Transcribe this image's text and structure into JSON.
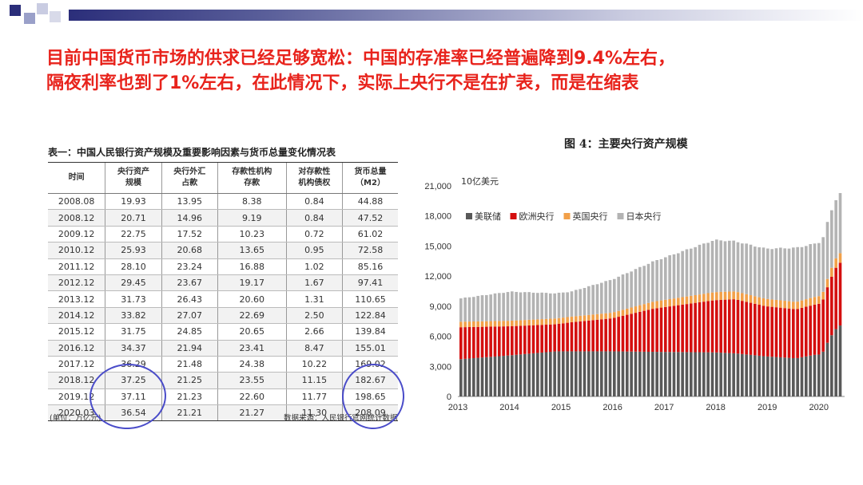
{
  "slide": {
    "headline_line1": "目前中国货币市场的供求已经足够宽松：中国的存准率已经普遍降到9.4%左右，",
    "headline_line2": "隔夜利率也到了1%左右，在此情况下，实际上央行不是在扩表，而是在缩表",
    "accent_colors": {
      "headline": "#e8231c",
      "bar_dark": "#2b2e7a",
      "annotation_circle": "#4a4cc9"
    }
  },
  "table": {
    "title": "表一：中国人民银行资产规模及重要影响因素与货币总量变化情况表",
    "headers": [
      "时间",
      "央行资产规模",
      "央行外汇占款",
      "存款性机构存款",
      "对存款性机构债权",
      "货币总量（M2）"
    ],
    "header_lines": [
      [
        "时间",
        ""
      ],
      [
        "央行资产",
        "规模"
      ],
      [
        "央行外汇",
        "占款"
      ],
      [
        "存款性机构",
        "存款"
      ],
      [
        "对存款性",
        "机构债权"
      ],
      [
        "货币总量",
        "（M2）"
      ]
    ],
    "rows": [
      [
        "2008.08",
        "19.93",
        "13.95",
        "8.38",
        "0.84",
        "44.88"
      ],
      [
        "2008.12",
        "20.71",
        "14.96",
        "9.19",
        "0.84",
        "47.52"
      ],
      [
        "2009.12",
        "22.75",
        "17.52",
        "10.23",
        "0.72",
        "61.02"
      ],
      [
        "2010.12",
        "25.93",
        "20.68",
        "13.65",
        "0.95",
        "72.58"
      ],
      [
        "2011.12",
        "28.10",
        "23.24",
        "16.88",
        "1.02",
        "85.16"
      ],
      [
        "2012.12",
        "29.45",
        "23.67",
        "19.17",
        "1.67",
        "97.41"
      ],
      [
        "2013.12",
        "31.73",
        "26.43",
        "20.60",
        "1.31",
        "110.65"
      ],
      [
        "2014.12",
        "33.82",
        "27.07",
        "22.69",
        "2.50",
        "122.84"
      ],
      [
        "2015.12",
        "31.75",
        "24.85",
        "20.65",
        "2.66",
        "139.84"
      ],
      [
        "2016.12",
        "34.37",
        "21.94",
        "23.41",
        "8.47",
        "155.01"
      ],
      [
        "2017.12",
        "36.29",
        "21.48",
        "24.38",
        "10.22",
        "169.02"
      ],
      [
        "2018.12",
        "37.25",
        "21.25",
        "23.55",
        "11.15",
        "182.67"
      ],
      [
        "2019.12",
        "37.11",
        "21.23",
        "22.60",
        "11.77",
        "198.65"
      ],
      [
        "2020.03",
        "36.54",
        "21.21",
        "21.27",
        "11.30",
        "208.09"
      ]
    ],
    "unit_note": "(单位：万亿元)",
    "source_note": "数据来源：人民银行官网统计数据"
  },
  "chart_data": {
    "type": "bar",
    "stacked": true,
    "title": "图 4：主要央行资产规模",
    "ylabel": "10亿美元",
    "ylim": [
      0,
      21000
    ],
    "yticks": [
      0,
      3000,
      6000,
      9000,
      12000,
      15000,
      18000,
      21000
    ],
    "ytick_labels": [
      "0",
      "3,000",
      "6,000",
      "9,000",
      "12,000",
      "15,000",
      "18,000",
      "21,000"
    ],
    "xtick_labels": [
      "2013",
      "2014",
      "2015",
      "2016",
      "2017",
      "2018",
      "2019",
      "2020"
    ],
    "legend_placement": "top-left",
    "series": [
      {
        "name": "美联储",
        "color": "#595959"
      },
      {
        "name": "欧洲央行",
        "color": "#d40f0f"
      },
      {
        "name": "英国央行",
        "color": "#f2a049"
      },
      {
        "name": "日本央行",
        "color": "#b3b3b3"
      }
    ],
    "anchors": [
      {
        "t": 2013.0,
        "fed": 3700,
        "ecb": 3200,
        "boe": 550,
        "boj": 2300
      },
      {
        "t": 2014.0,
        "fed": 4100,
        "ecb": 2900,
        "boe": 550,
        "boj": 2900
      },
      {
        "t": 2014.9,
        "fed": 4500,
        "ecb": 2700,
        "boe": 580,
        "boj": 2500
      },
      {
        "t": 2015.2,
        "fed": 4500,
        "ecb": 2900,
        "boe": 560,
        "boj": 2500
      },
      {
        "t": 2016.0,
        "fed": 4500,
        "ecb": 3300,
        "boe": 560,
        "boj": 3300
      },
      {
        "t": 2016.8,
        "fed": 4450,
        "ecb": 4300,
        "boe": 700,
        "boj": 4000
      },
      {
        "t": 2018.0,
        "fed": 4400,
        "ecb": 5200,
        "boe": 800,
        "boj": 5200
      },
      {
        "t": 2018.4,
        "fed": 4300,
        "ecb": 5400,
        "boe": 780,
        "boj": 5000
      },
      {
        "t": 2019.0,
        "fed": 4000,
        "ecb": 5000,
        "boe": 740,
        "boj": 5000
      },
      {
        "t": 2019.6,
        "fed": 3800,
        "ecb": 4900,
        "boe": 720,
        "boj": 5400
      },
      {
        "t": 2019.95,
        "fed": 4150,
        "ecb": 5000,
        "boe": 770,
        "boj": 5300
      },
      {
        "t": 2020.1,
        "fed": 4200,
        "ecb": 5100,
        "boe": 750,
        "boj": 5400
      },
      {
        "t": 2020.25,
        "fed": 5800,
        "ecb": 5700,
        "boe": 860,
        "boj": 5700
      },
      {
        "t": 2020.4,
        "fed": 6900,
        "ecb": 6200,
        "boe": 950,
        "boj": 5900
      },
      {
        "t": 2020.5,
        "fed": 7200,
        "ecb": 6300,
        "boe": 960,
        "boj": 6000
      }
    ],
    "x_range": [
      2013.0,
      2020.5
    ]
  }
}
